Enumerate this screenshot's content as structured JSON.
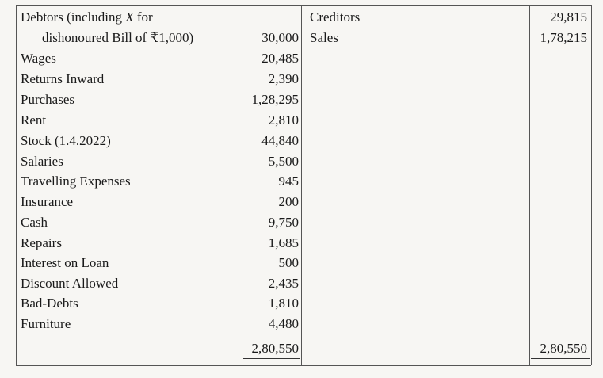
{
  "left": [
    {
      "label_part1": "Debtors (including ",
      "label_italic": "X",
      "label_part2": " for"
    },
    {
      "label": "dishonoured Bill of ₹1,000)",
      "amount": "30,000"
    },
    {
      "label": "Wages",
      "amount": "20,485"
    },
    {
      "label": "Returns Inward",
      "amount": "2,390"
    },
    {
      "label": "Purchases",
      "amount": "1,28,295"
    },
    {
      "label": "Rent",
      "amount": "2,810"
    },
    {
      "label": "Stock (1.4.2022)",
      "amount": "44,840"
    },
    {
      "label": "Salaries",
      "amount": "5,500"
    },
    {
      "label": "Travelling Expenses",
      "amount": "945"
    },
    {
      "label": "Insurance",
      "amount": "200"
    },
    {
      "label": "Cash",
      "amount": "9,750"
    },
    {
      "label": "Repairs",
      "amount": "1,685"
    },
    {
      "label": "Interest on Loan",
      "amount": "500"
    },
    {
      "label": "Discount Allowed",
      "amount": "2,435"
    },
    {
      "label": "Bad-Debts",
      "amount": "1,810"
    },
    {
      "label": "Furniture",
      "amount": "4,480"
    }
  ],
  "right": [
    {
      "label": "Creditors",
      "amount": "29,815"
    },
    {
      "label": "Sales",
      "amount": "1,78,215"
    }
  ],
  "totals": {
    "left": "2,80,550",
    "right": "2,80,550"
  }
}
